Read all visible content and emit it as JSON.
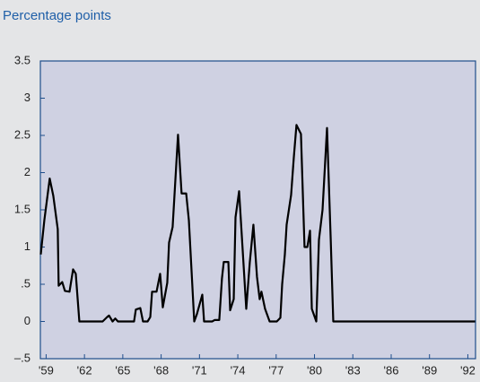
{
  "chart_data": {
    "type": "line",
    "title": "Percentage points",
    "x": [
      58.58,
      58.86,
      59.28,
      59.56,
      59.91,
      59.98,
      60.26,
      60.47,
      60.83,
      61.11,
      61.32,
      61.6,
      63.42,
      63.78,
      63.92,
      64.2,
      64.41,
      64.62,
      65.88,
      66.02,
      66.37,
      66.58,
      66.94,
      67.15,
      67.29,
      67.64,
      67.92,
      68.13,
      68.48,
      68.62,
      68.9,
      69.32,
      69.6,
      69.96,
      70.17,
      70.59,
      70.8,
      71.22,
      71.36,
      71.99,
      72.2,
      72.55,
      72.76,
      72.9,
      73.26,
      73.4,
      73.68,
      73.82,
      74.1,
      74.66,
      74.94,
      75.22,
      75.5,
      75.71,
      75.85,
      76.13,
      76.49,
      77.05,
      77.33,
      77.47,
      77.68,
      77.82,
      78.17,
      78.38,
      78.59,
      78.94,
      79.22,
      79.44,
      79.65,
      79.79,
      80.14,
      80.35,
      80.63,
      80.98,
      81.27,
      81.47,
      92.57
    ],
    "values": [
      0.9,
      1.36,
      1.92,
      1.69,
      1.24,
      0.48,
      0.53,
      0.41,
      0.4,
      0.7,
      0.64,
      0,
      0,
      0.06,
      0.08,
      0,
      0.04,
      0,
      0,
      0.16,
      0.18,
      0,
      0,
      0.06,
      0.4,
      0.4,
      0.64,
      0.19,
      0.52,
      1.06,
      1.27,
      2.51,
      1.72,
      1.72,
      1.36,
      0,
      0.1,
      0.36,
      0,
      0,
      0.02,
      0.02,
      0.58,
      0.8,
      0.8,
      0.15,
      0.3,
      1.4,
      1.75,
      0.17,
      0.8,
      1.3,
      0.6,
      0.3,
      0.4,
      0.17,
      0,
      0,
      0.05,
      0.5,
      0.9,
      1.3,
      1.7,
      2.2,
      2.64,
      2.52,
      1.0,
      1.0,
      1.22,
      0.17,
      0,
      1.1,
      1.5,
      2.6,
      1.1,
      0,
      0
    ],
    "color": "#000000",
    "xlim": [
      58.55,
      92.6
    ],
    "xticks": [
      {
        "value": 59,
        "label": "'59"
      },
      {
        "value": 62,
        "label": "'62"
      },
      {
        "value": 65,
        "label": "'65"
      },
      {
        "value": 68,
        "label": "'68"
      },
      {
        "value": 71,
        "label": "'71"
      },
      {
        "value": 74,
        "label": "'74"
      },
      {
        "value": 77,
        "label": "'77"
      },
      {
        "value": 80,
        "label": "'80"
      },
      {
        "value": 83,
        "label": "'83"
      },
      {
        "value": 86,
        "label": "'86"
      },
      {
        "value": 89,
        "label": "'89"
      },
      {
        "value": 92,
        "label": "'92"
      }
    ],
    "ylim": [
      -0.5,
      3.5
    ],
    "yticks": [
      {
        "value": -0.5,
        "label": "–.5"
      },
      0,
      {
        "value": 0.5,
        "label": ".5"
      },
      1,
      1.5,
      2,
      2.5,
      3,
      3.5
    ],
    "grid": false
  }
}
